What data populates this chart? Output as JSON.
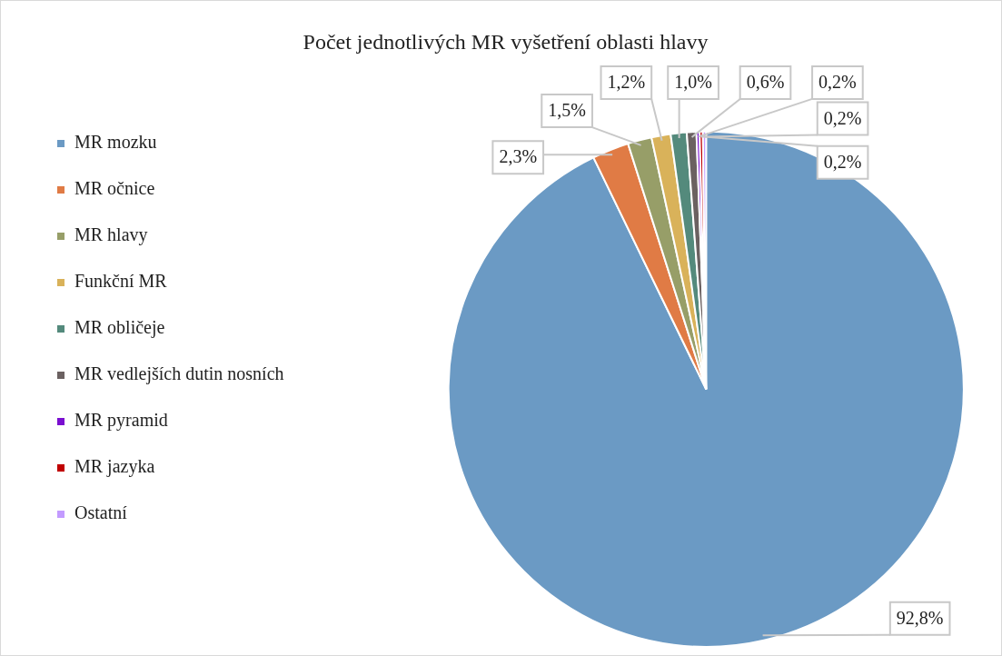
{
  "chart_data": {
    "type": "pie",
    "title": "Počet jednotlivých MR vyšetření oblasti hlavy",
    "categories": [
      "MR mozku",
      "MR očnice",
      "MR hlavy",
      "Funkční MR",
      "MR obličeje",
      "MR vedlejších dutin nosních",
      "MR pyramid",
      "MR jazyka",
      "Ostatní"
    ],
    "values": [
      92.8,
      2.3,
      1.5,
      1.2,
      1.0,
      0.6,
      0.2,
      0.2,
      0.2
    ],
    "colors": [
      "#6b9ac4",
      "#e07b45",
      "#979e68",
      "#d9b25a",
      "#548a7c",
      "#6b6161",
      "#7a0fd0",
      "#c00000",
      "#c39bff"
    ],
    "value_labels": [
      "92,8%",
      "2,3%",
      "1,5%",
      "1,2%",
      "1,0%",
      "0,6%",
      "0,2%",
      "0,2%",
      "0,2%"
    ],
    "legend": "left"
  }
}
